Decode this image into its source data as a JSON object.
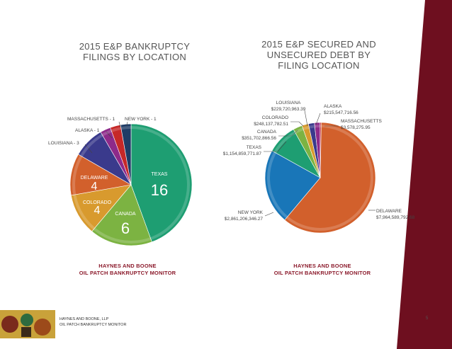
{
  "page": {
    "footer_line1": "HAYNES AND BOONE, LLP",
    "footer_line2": "OIL PATCH BANKRUPTCY MONITOR",
    "page_number": "5"
  },
  "chart_data": [
    {
      "type": "pie",
      "title": "2015 E&P BANKRUPTCY FILINGS BY LOCATION",
      "title_lines": [
        "2015 E&P BANKRUPTCY",
        "FILINGS BY LOCATION"
      ],
      "source_line1": "HAYNES AND BOONE",
      "source_line2": "OIL PATCH BANKRUPTCY MONITOR",
      "slices": [
        {
          "label": "TEXAS",
          "value": 16,
          "display": "TEXAS",
          "color": "#1e9e72"
        },
        {
          "label": "CANADA",
          "value": 6,
          "display": "CANADA",
          "color": "#7cb342"
        },
        {
          "label": "COLORADO",
          "value": 4,
          "display": "COLORADO",
          "color": "#d89a2e"
        },
        {
          "label": "DELAWARE",
          "value": 4,
          "display": "DELAWARE",
          "color": "#d2602c"
        },
        {
          "label": "LOUISIANA",
          "value": 3,
          "display": "LOUISIANA - 3",
          "color": "#3a3a8c"
        },
        {
          "label": "ALASKA",
          "value": 1,
          "display": "ALASKA - 1",
          "color": "#8e2a8a"
        },
        {
          "label": "MASSACHUSETTS",
          "value": 1,
          "display": "MASSACHUSETTS - 1",
          "color": "#c62828"
        },
        {
          "label": "NEW YORK",
          "value": 1,
          "display": "NEW YORK - 1",
          "color": "#1f3c66"
        }
      ]
    },
    {
      "type": "pie",
      "title": "2015 E&P SECURED AND UNSECURED DEBT BY FILING LOCATION",
      "title_lines": [
        "2015 E&P SECURED AND",
        "UNSECURED DEBT BY",
        "FILING LOCATION"
      ],
      "source_line1": "HAYNES AND BOONE",
      "source_line2": "OIL PATCH BANKRUPTCY MONITOR",
      "slices": [
        {
          "label": "DELAWARE",
          "value": 7964589792.68,
          "display": "$7,964,589,792.68",
          "color": "#d2602c"
        },
        {
          "label": "NEW YORK",
          "value": 2861206346.27,
          "display": "$2,861,206,346.27",
          "color": "#1976b8"
        },
        {
          "label": "TEXAS",
          "value": 1154859771.87,
          "display": "$1,154,859,771.87",
          "color": "#1e9e72"
        },
        {
          "label": "CANADA",
          "value": 351702866.56,
          "display": "$351,702,866.56",
          "color": "#7cb342"
        },
        {
          "label": "COLORADO",
          "value": 248137782.51,
          "display": "$248,137,782.51",
          "color": "#d89a2e"
        },
        {
          "label": "LOUISIANA",
          "value": 229720963.39,
          "display": "$229,720,963.39",
          "color": "#3a3a8c"
        },
        {
          "label": "ALASKA",
          "value": 215547716.56,
          "display": "$215,547,716.56",
          "color": "#8e2a8a"
        },
        {
          "label": "MASSACHUSETTS",
          "value": 3578275.95,
          "display": "$3,578,275.95",
          "color": "#c62828"
        }
      ]
    }
  ]
}
